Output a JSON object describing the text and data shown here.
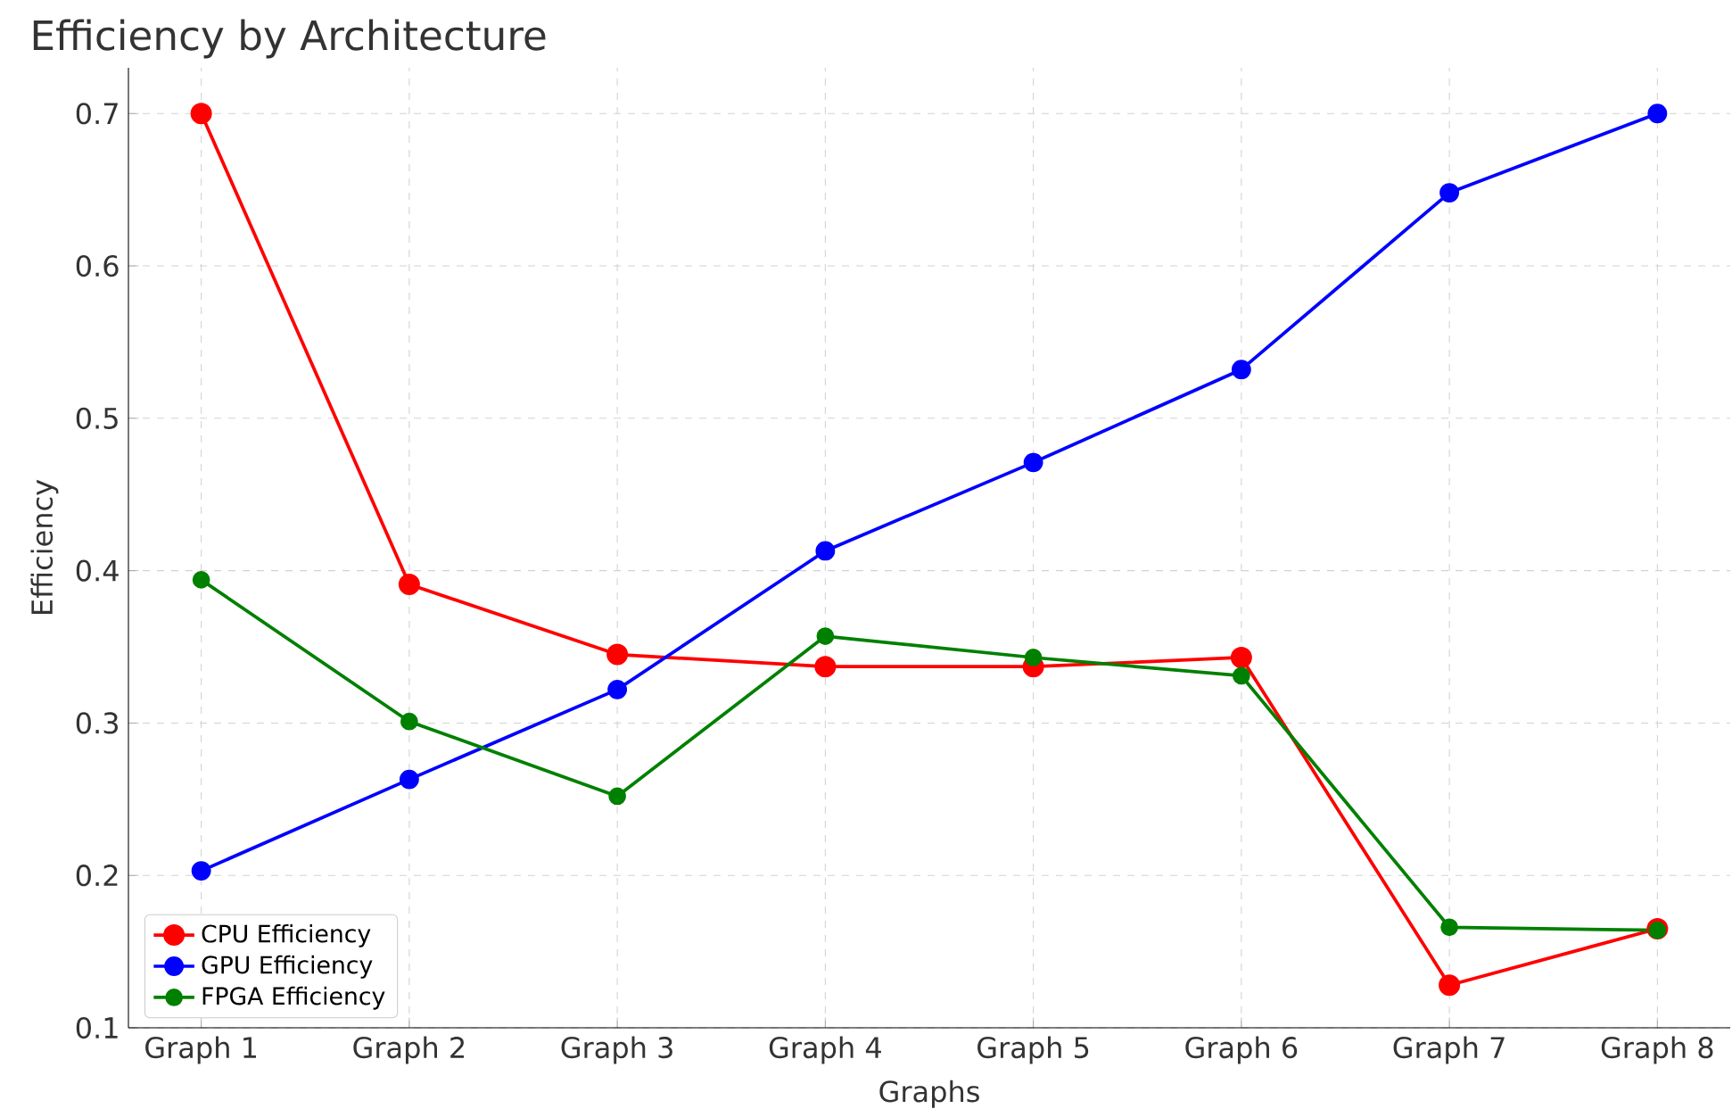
{
  "chart_data": {
    "type": "line",
    "title": "Efficiency by Architecture",
    "xlabel": "Graphs",
    "ylabel": "Efficiency",
    "categories": [
      "Graph 1",
      "Graph 2",
      "Graph 3",
      "Graph 4",
      "Graph 5",
      "Graph 6",
      "Graph 7",
      "Graph 8"
    ],
    "series": [
      {
        "name": "CPU Efficiency",
        "color": "#ff0000",
        "values": [
          0.7,
          0.391,
          0.345,
          0.337,
          0.337,
          0.343,
          0.128,
          0.165
        ]
      },
      {
        "name": "GPU Efficiency",
        "color": "#0000ff",
        "values": [
          0.203,
          0.263,
          0.322,
          0.413,
          0.471,
          0.532,
          0.648,
          0.7
        ]
      },
      {
        "name": "FPGA Efficiency",
        "color": "#008000",
        "values": [
          0.394,
          0.301,
          0.252,
          0.357,
          0.343,
          0.331,
          0.166,
          0.164
        ]
      }
    ],
    "ylim": [
      0.1,
      0.73
    ],
    "yticks": [
      0.1,
      0.2,
      0.3,
      0.4,
      0.5,
      0.6,
      0.7
    ],
    "grid": true,
    "legend": "bottom left",
    "marker": "circle",
    "line_style": "solid"
  }
}
